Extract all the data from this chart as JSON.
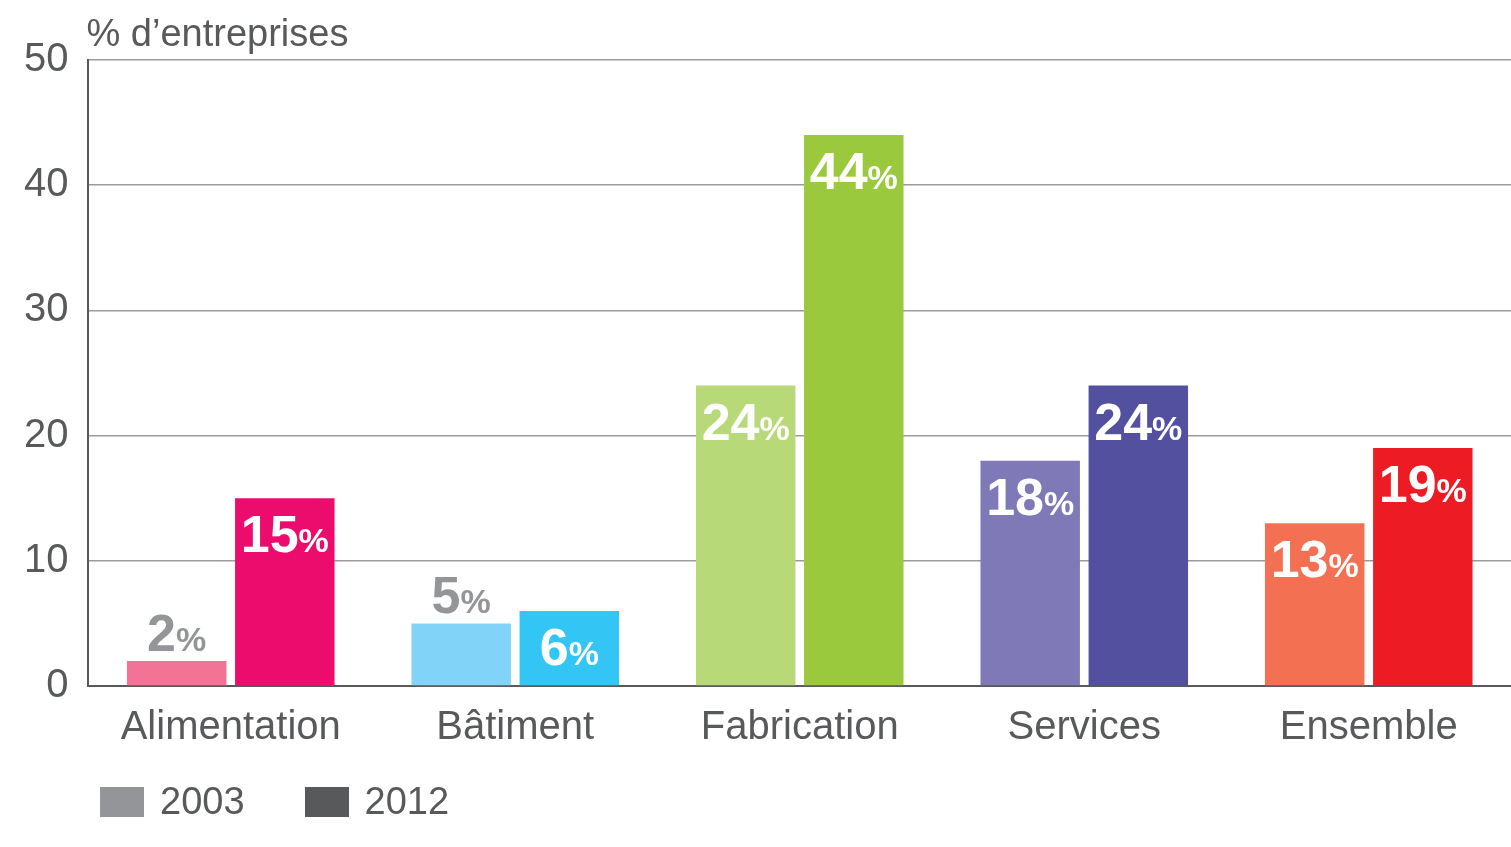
{
  "chart_data": {
    "type": "bar",
    "ylabel": "% d’entreprises",
    "categories": [
      "Alimentation",
      "Bâtiment",
      "Fabrication",
      "Services",
      "Ensemble"
    ],
    "series": [
      {
        "name": "2003",
        "color": "#939598",
        "colors": [
          "#f37396",
          "#81d4f7",
          "#b7d978",
          "#7f79b7",
          "#f37053"
        ],
        "values": [
          2,
          5,
          24,
          18,
          13
        ],
        "value_labels": [
          "2%",
          "5%",
          "24%",
          "18%",
          "13%"
        ]
      },
      {
        "name": "2012",
        "color": "#58595b",
        "colors": [
          "#ec0c6e",
          "#33c5f3",
          "#9ac93d",
          "#5450a0",
          "#ed1c24"
        ],
        "values": [
          15,
          6,
          44,
          24,
          19
        ],
        "value_labels": [
          "15%",
          "6%",
          "44%",
          "24%",
          "19%"
        ]
      }
    ],
    "ylim": [
      0,
      50
    ],
    "yticks": [
      0,
      10,
      20,
      30,
      40,
      50
    ],
    "grid": "y",
    "legend": "bottom left"
  }
}
